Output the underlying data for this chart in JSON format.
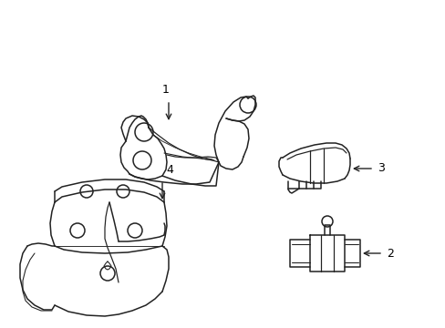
{
  "bg_color": "#ffffff",
  "line_color": "#222222",
  "line_width": 1.1,
  "label_color": "#000000",
  "label_fontsize": 9,
  "figsize": [
    4.89,
    3.6
  ],
  "dpi": 100
}
